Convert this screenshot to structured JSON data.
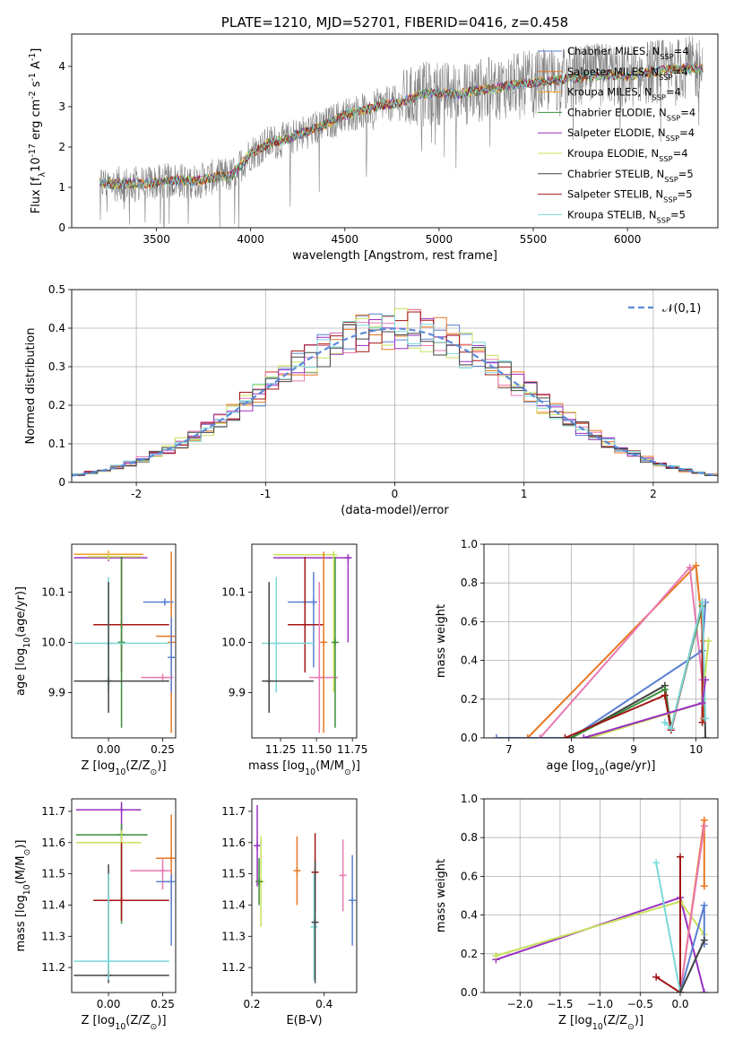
{
  "colors": {
    "chabrier_miles": "#5b7fd1",
    "salpeter_miles": "#e87722",
    "kroupa_miles": "#f3a01c",
    "chabrier_elodie": "#3a8f3a",
    "salpeter_elodie": "#9a2fc1",
    "kroupa_elodie": "#c8e05a",
    "chabrier_stelib": "#444444",
    "salpeter_stelib": "#a31515",
    "kroupa_stelib": "#7ad8d8",
    "pink": "#e87ab2",
    "normal_line": "#5b8bd6",
    "grid": "#b0b0b0"
  },
  "chart_data": [
    {
      "id": "spectrum",
      "type": "line",
      "title": "PLATE=1210, MJD=52701, FIBERID=0416, z=0.458",
      "xlabel": "wavelength [Angstrom, rest frame]",
      "ylabel": "Flux [f$_\\lambda$10$^{-17}$ erg cm$^{-2}$ s$^{-1}$ A$^{-1}$]",
      "xlim": [
        3050,
        6480
      ],
      "ylim": [
        0,
        4.8
      ],
      "xticks": [
        3500,
        4000,
        4500,
        5000,
        5500,
        6000
      ],
      "yticks": [
        0,
        1,
        2,
        3,
        4
      ],
      "grid": false,
      "legend_position": "top-right",
      "legend": [
        {
          "label": "Chabrier MILES, N$_{SSP}$=4",
          "color_key": "chabrier_miles"
        },
        {
          "label": "Salpeter MILES, N$_{SSP}$=4",
          "color_key": "salpeter_miles"
        },
        {
          "label": "Kroupa MILES, N$_{SSP}$=4",
          "color_key": "kroupa_miles"
        },
        {
          "label": "Chabrier ELODIE, N$_{SSP}$=4",
          "color_key": "chabrier_elodie"
        },
        {
          "label": "Salpeter ELODIE, N$_{SSP}$=4",
          "color_key": "salpeter_elodie"
        },
        {
          "label": "Kroupa ELODIE, N$_{SSP}$=4",
          "color_key": "kroupa_elodie"
        },
        {
          "label": "Chabrier STELIB, N$_{SSP}$=5",
          "color_key": "chabrier_stelib"
        },
        {
          "label": "Salpeter STELIB, N$_{SSP}$=5",
          "color_key": "salpeter_stelib"
        },
        {
          "label": "Kroupa STELIB, N$_{SSP}$=5",
          "color_key": "kroupa_stelib"
        }
      ],
      "model": {
        "x": [
          3200,
          3300,
          3400,
          3500,
          3600,
          3700,
          3800,
          3900,
          4000,
          4100,
          4200,
          4300,
          4400,
          4500,
          4600,
          4700,
          4800,
          4900,
          5000,
          5100,
          5200,
          5300,
          5400,
          5500,
          5600,
          5700,
          5800,
          5900,
          6000,
          6100,
          6200,
          6300
        ],
        "y": [
          1.1,
          1.08,
          1.1,
          1.12,
          1.18,
          1.15,
          1.25,
          1.3,
          1.85,
          2.1,
          2.2,
          2.4,
          2.55,
          2.8,
          2.9,
          3.05,
          3.1,
          3.3,
          3.35,
          3.3,
          3.4,
          3.45,
          3.55,
          3.6,
          3.65,
          3.7,
          3.75,
          3.8,
          3.75,
          3.85,
          3.9,
          3.95
        ]
      },
      "data_noise": 0.45
    },
    {
      "id": "residuals",
      "type": "line",
      "xlabel": "(data-model)/error",
      "ylabel": "Normed distribution",
      "xlim": [
        -2.5,
        2.5
      ],
      "ylim": [
        0,
        0.5
      ],
      "xticks": [
        -2,
        -1,
        0,
        1,
        2
      ],
      "yticks": [
        0.0,
        0.1,
        0.2,
        0.3,
        0.4,
        0.5
      ],
      "grid": true,
      "legend_position": "top-right",
      "legend": [
        {
          "label": "$\\mathcal{N}(0,1)$",
          "color_key": "normal_line",
          "style": "dashed"
        }
      ],
      "histogram_bin_width": 0.1,
      "histogram_color_keys": [
        "chabrier_miles",
        "salpeter_miles",
        "pink",
        "kroupa_elodie",
        "salpeter_elodie",
        "salpeter_stelib",
        "kroupa_stelib",
        "chabrier_stelib"
      ]
    },
    {
      "id": "age_vs_Z",
      "type": "scatter",
      "xlabel": "Z [log$_{10}$(Z/Z$_\\odot$)]",
      "ylabel": "age  [log$_{10}$(age/yr)]",
      "xlim": [
        -0.17,
        0.31
      ],
      "ylim": [
        9.81,
        10.195
      ],
      "xticks": [
        0.0,
        0.25
      ],
      "xticklabels": [
        "0.00",
        "0.25"
      ],
      "yticks": [
        9.9,
        10.0,
        10.1
      ],
      "yticklabels": [
        "9.9",
        "10.0",
        "10.1"
      ],
      "grid": false,
      "points": [
        {
          "c": "kroupa_miles",
          "x": 0.0,
          "xe": [
            -0.16,
            0.16
          ],
          "y": 10.175,
          "ye": [
            10.175,
            10.175
          ]
        },
        {
          "c": "salpeter_elodie",
          "x": 0.0,
          "xe": [
            -0.16,
            0.18
          ],
          "y": 10.168,
          "ye": [
            10.168,
            10.168
          ]
        },
        {
          "c": "kroupa_elodie",
          "x": 0.0,
          "xe": [
            -0.1,
            0.15
          ],
          "y": 10.17,
          "ye": [
            10.17,
            10.17
          ]
        },
        {
          "c": "salpeter_miles",
          "x": 0.29,
          "xe": [
            0.29,
            0.29
          ],
          "y": 10.0,
          "ye": [
            9.82,
            10.18
          ]
        },
        {
          "c": "salpeter_miles",
          "x": 0.29,
          "xe": [
            0.22,
            0.3
          ],
          "y": 10.012,
          "ye": [
            10.012,
            10.012
          ]
        },
        {
          "c": "chabrier_miles",
          "x": 0.26,
          "xe": [
            0.16,
            0.3
          ],
          "y": 10.08,
          "ye": [
            10.08,
            10.08
          ]
        },
        {
          "c": "chabrier_miles",
          "x": 0.29,
          "xe": [
            0.29,
            0.29
          ],
          "y": 9.97,
          "ye": [
            9.9,
            10.05
          ]
        },
        {
          "c": "pink",
          "x": 0.25,
          "xe": [
            0.15,
            0.3
          ],
          "y": 9.93,
          "ye": [
            9.93,
            9.93
          ]
        },
        {
          "c": "salpeter_stelib",
          "x": 0.06,
          "xe": [
            -0.07,
            0.28
          ],
          "y": 10.035,
          "ye": [
            9.94,
            10.17
          ]
        },
        {
          "c": "chabrier_elodie",
          "x": 0.06,
          "xe": [
            0.06,
            0.06
          ],
          "y": 10.0,
          "ye": [
            9.83,
            10.17
          ]
        },
        {
          "c": "kroupa_stelib",
          "x": 0.0,
          "xe": [
            -0.16,
            0.28
          ],
          "y": 9.998,
          "ye": [
            9.9,
            10.13
          ]
        },
        {
          "c": "chabrier_stelib",
          "x": 0.0,
          "xe": [
            -0.16,
            0.28
          ],
          "y": 9.923,
          "ye": [
            9.86,
            10.12
          ]
        }
      ]
    },
    {
      "id": "age_vs_mass",
      "type": "scatter",
      "xlabel": "mass [log$_{10}$(M/M$_\\odot$)]",
      "ylabel": "",
      "xlim": [
        11.05,
        11.78
      ],
      "ylim": [
        9.81,
        10.195
      ],
      "xticks": [
        11.25,
        11.5,
        11.75
      ],
      "xticklabels": [
        "11.25",
        "11.50",
        "11.75"
      ],
      "yticks": [
        9.9,
        10.0,
        10.1
      ],
      "yticklabels": [
        "9.9",
        "10.0",
        "10.1"
      ],
      "grid": false,
      "points": [
        {
          "c": "salpeter_elodie",
          "x": 11.72,
          "xe": [
            11.2,
            11.74
          ],
          "y": 10.168,
          "ye": [
            10.0,
            10.17
          ]
        },
        {
          "c": "kroupa_elodie",
          "x": 11.62,
          "xe": [
            11.2,
            11.64
          ],
          "y": 10.174,
          "ye": [
            9.9,
            10.18
          ]
        },
        {
          "c": "chabrier_miles",
          "x": 11.48,
          "xe": [
            11.3,
            11.5
          ],
          "y": 10.08,
          "ye": [
            9.95,
            10.14
          ]
        },
        {
          "c": "salpeter_stelib",
          "x": 11.42,
          "xe": [
            11.3,
            11.55
          ],
          "y": 10.035,
          "ye": [
            9.94,
            10.17
          ]
        },
        {
          "c": "kroupa_stelib",
          "x": 11.22,
          "xe": [
            11.12,
            11.48
          ],
          "y": 9.998,
          "ye": [
            9.9,
            10.13
          ]
        },
        {
          "c": "chabrier_stelib",
          "x": 11.17,
          "xe": [
            11.12,
            11.48
          ],
          "y": 9.923,
          "ye": [
            9.86,
            10.12
          ]
        },
        {
          "c": "pink",
          "x": 11.52,
          "xe": [
            11.45,
            11.65
          ],
          "y": 9.93,
          "ye": [
            9.82,
            10.12
          ]
        },
        {
          "c": "chabrier_elodie",
          "x": 11.63,
          "xe": [
            11.63,
            11.63
          ],
          "y": 10.0,
          "ye": [
            9.83,
            10.17
          ]
        },
        {
          "c": "salpeter_miles",
          "x": 11.55,
          "xe": [
            11.55,
            11.55
          ],
          "y": 10.0,
          "ye": [
            9.82,
            10.18
          ]
        }
      ]
    },
    {
      "id": "mass_weight_vs_age",
      "type": "line",
      "xlabel": "age  [log$_{10}$(age/yr)]",
      "ylabel": "mass weight",
      "xlim": [
        6.6,
        10.35
      ],
      "ylim": [
        0,
        1.0
      ],
      "xticks": [
        7,
        8,
        9,
        10
      ],
      "yticks": [
        0.0,
        0.2,
        0.4,
        0.6,
        0.8,
        1.0
      ],
      "yticklabels": [
        "0.0",
        "0.2",
        "0.4",
        "0.6",
        "0.8",
        "1.0"
      ],
      "grid": true,
      "series": [
        {
          "c": "salpeter_miles",
          "x": [
            7.3,
            10.0,
            10.12,
            10.12
          ],
          "y": [
            0.0,
            0.89,
            0.5,
            0.1
          ]
        },
        {
          "c": "pink",
          "x": [
            7.5,
            9.9,
            10.1
          ],
          "y": [
            0.0,
            0.88,
            0.3
          ]
        },
        {
          "c": "chabrier_miles",
          "x": [
            6.8,
            8.0,
            10.1,
            10.15
          ],
          "y": [
            0.0,
            0.0,
            0.45,
            0.7
          ]
        },
        {
          "c": "chabrier_stelib",
          "x": [
            8.0,
            9.5,
            9.6,
            10.1,
            10.15
          ],
          "y": [
            0.0,
            0.27,
            0.05,
            0.7,
            0.0
          ]
        },
        {
          "c": "chabrier_elodie",
          "x": [
            8.0,
            9.5,
            9.6,
            10.1
          ],
          "y": [
            0.0,
            0.25,
            0.05,
            0.68
          ]
        },
        {
          "c": "salpeter_stelib",
          "x": [
            7.9,
            9.5,
            9.6,
            10.1,
            10.1
          ],
          "y": [
            0.0,
            0.22,
            0.04,
            0.7,
            0.08
          ]
        },
        {
          "c": "kroupa_stelib",
          "x": [
            9.5,
            9.6,
            10.1,
            10.15
          ],
          "y": [
            0.08,
            0.05,
            0.7,
            0.1
          ]
        },
        {
          "c": "kroupa_elodie",
          "x": [
            8.3,
            10.1,
            10.2
          ],
          "y": [
            0.0,
            0.18,
            0.5
          ]
        },
        {
          "c": "salpeter_elodie",
          "x": [
            8.2,
            10.1,
            10.15
          ],
          "y": [
            0.0,
            0.18,
            0.3
          ]
        }
      ]
    },
    {
      "id": "mass_vs_Z",
      "type": "scatter",
      "xlabel": "Z [log$_{10}$(Z/Z$_\\odot$)]",
      "ylabel": "mass [log$_{10}$(M/M$_\\odot$)]",
      "xlim": [
        -0.17,
        0.31
      ],
      "ylim": [
        11.12,
        11.74
      ],
      "xticks": [
        0.0,
        0.25
      ],
      "xticklabels": [
        "0.00",
        "0.25"
      ],
      "yticks": [
        11.2,
        11.3,
        11.4,
        11.5,
        11.6,
        11.7
      ],
      "yticklabels": [
        "11.2",
        "11.3",
        "11.4",
        "11.5",
        "11.6",
        "11.7"
      ],
      "grid": false,
      "points": [
        {
          "c": "salpeter_elodie",
          "x": 0.06,
          "xe": [
            -0.15,
            0.15
          ],
          "y": 11.705,
          "ye": [
            11.35,
            11.73
          ]
        },
        {
          "c": "chabrier_elodie",
          "x": 0.06,
          "xe": [
            -0.15,
            0.18
          ],
          "y": 11.625,
          "ye": [
            11.34,
            11.66
          ]
        },
        {
          "c": "kroupa_elodie",
          "x": 0.06,
          "xe": [
            -0.15,
            0.15
          ],
          "y": 11.6,
          "ye": [
            11.35,
            11.64
          ]
        },
        {
          "c": "salpeter_miles",
          "x": 0.29,
          "xe": [
            0.22,
            0.29
          ],
          "y": 11.55,
          "ye": [
            11.4,
            11.69
          ]
        },
        {
          "c": "pink",
          "x": 0.25,
          "xe": [
            0.1,
            0.29
          ],
          "y": 11.51,
          "ye": [
            11.45,
            11.55
          ]
        },
        {
          "c": "chabrier_miles",
          "x": 0.29,
          "xe": [
            0.22,
            0.29
          ],
          "y": 11.475,
          "ye": [
            11.27,
            11.5
          ]
        },
        {
          "c": "salpeter_stelib",
          "x": 0.06,
          "xe": [
            -0.07,
            0.28
          ],
          "y": 11.415,
          "ye": [
            11.35,
            11.6
          ]
        },
        {
          "c": "chabrier_stelib",
          "x": 0.0,
          "xe": [
            -0.16,
            0.28
          ],
          "y": 11.175,
          "ye": [
            11.15,
            11.53
          ]
        },
        {
          "c": "kroupa_stelib",
          "x": 0.0,
          "xe": [
            -0.16,
            0.28
          ],
          "y": 11.22,
          "ye": [
            11.16,
            11.5
          ]
        }
      ]
    },
    {
      "id": "mass_vs_EBV",
      "type": "scatter",
      "xlabel": "E(B-V)",
      "ylabel": "",
      "xlim": [
        0.2,
        0.49
      ],
      "ylim": [
        11.12,
        11.74
      ],
      "xticks": [
        0.2,
        0.4
      ],
      "xticklabels": [
        "0.2",
        "0.4"
      ],
      "yticks": [
        11.2,
        11.3,
        11.4,
        11.5,
        11.6,
        11.7
      ],
      "yticklabels": [
        "11.2",
        "11.3",
        "11.4",
        "11.5",
        "11.6",
        "11.7"
      ],
      "grid": false,
      "points": [
        {
          "c": "salpeter_elodie",
          "x": 0.215,
          "ye": [
            11.46,
            11.72
          ]
        },
        {
          "c": "kroupa_elodie",
          "x": 0.225,
          "ye": [
            11.33,
            11.62
          ]
        },
        {
          "c": "chabrier_elodie",
          "x": 0.22,
          "ye": [
            11.4,
            11.55
          ]
        },
        {
          "c": "salpeter_miles",
          "x": 0.325,
          "ye": [
            11.4,
            11.62
          ]
        },
        {
          "c": "salpeter_stelib",
          "x": 0.375,
          "ye": [
            11.38,
            11.63
          ]
        },
        {
          "c": "kroupa_stelib",
          "x": 0.372,
          "ye": [
            11.16,
            11.5
          ]
        },
        {
          "c": "chabrier_stelib",
          "x": 0.375,
          "ye": [
            11.15,
            11.54
          ]
        },
        {
          "c": "pink",
          "x": 0.452,
          "ye": [
            11.38,
            11.61
          ]
        },
        {
          "c": "chabrier_miles",
          "x": 0.478,
          "ye": [
            11.27,
            11.56
          ]
        }
      ]
    },
    {
      "id": "mass_weight_vs_Z",
      "type": "line",
      "xlabel": "Z [log$_{10}$(Z/Z$_\\odot$)]",
      "ylabel": "mass weight",
      "xlim": [
        -2.45,
        0.47
      ],
      "ylim": [
        0,
        1.0
      ],
      "xticks": [
        -2.0,
        -1.5,
        -1.0,
        -0.5,
        0.0
      ],
      "xticklabels": [
        "−2.0",
        "−1.5",
        "−1.0",
        "−0.5",
        "0.0"
      ],
      "yticks": [
        0.0,
        0.2,
        0.4,
        0.6,
        0.8,
        1.0
      ],
      "yticklabels": [
        "0.0",
        "0.2",
        "0.4",
        "0.6",
        "0.8",
        "1.0"
      ],
      "grid": true,
      "series": [
        {
          "c": "salpeter_elodie",
          "x": [
            -2.3,
            0.0,
            0.3
          ],
          "y": [
            0.17,
            0.49,
            0.0
          ]
        },
        {
          "c": "kroupa_elodie",
          "x": [
            -2.3,
            0.0,
            0.3
          ],
          "y": [
            0.19,
            0.47,
            0.3
          ]
        },
        {
          "c": "salpeter_miles",
          "x": [
            0.0,
            0.3,
            0.3
          ],
          "y": [
            0.0,
            0.89,
            0.55
          ]
        },
        {
          "c": "pink",
          "x": [
            0.0,
            0.3
          ],
          "y": [
            0.0,
            0.86
          ]
        },
        {
          "c": "salpeter_stelib",
          "x": [
            -0.3,
            0.0,
            0.0,
            0.0
          ],
          "y": [
            0.08,
            0.0,
            0.7,
            0.0
          ]
        },
        {
          "c": "chabrier_miles",
          "x": [
            0.0,
            0.3,
            0.3
          ],
          "y": [
            0.0,
            0.45,
            0.25
          ]
        },
        {
          "c": "kroupa_stelib",
          "x": [
            -0.3,
            0.0,
            0.3
          ],
          "y": [
            0.67,
            0.0,
            0.27
          ]
        },
        {
          "c": "chabrier_stelib",
          "x": [
            0.0,
            0.3
          ],
          "y": [
            0.0,
            0.27
          ]
        }
      ]
    }
  ]
}
